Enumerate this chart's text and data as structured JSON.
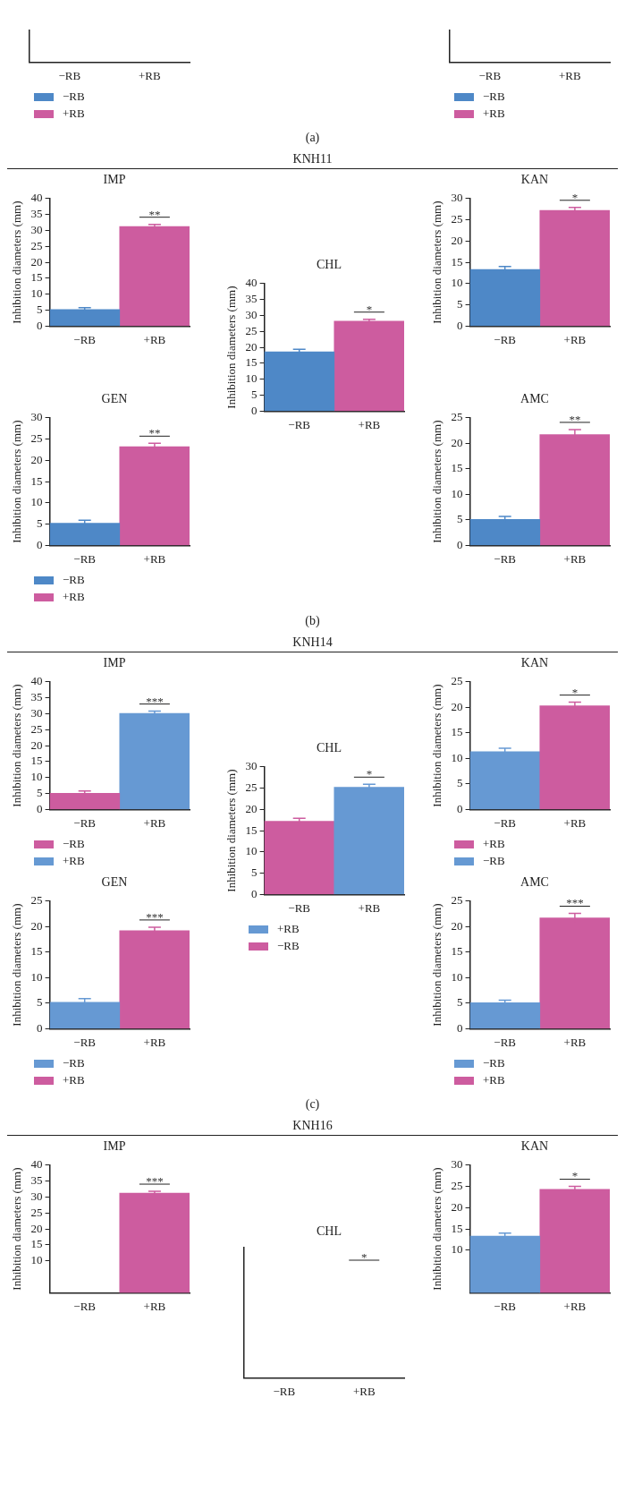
{
  "chart_data": [
    {
      "type": "other",
      "categories": [
        "−RB",
        "+RB"
      ],
      "series": [
        {
          "name": "−RB",
          "color": "#4e88c7",
          "values": [
            null,
            null
          ]
        },
        {
          "name": "+RB",
          "color": "#cd5c9f",
          "values": [
            null,
            null
          ]
        }
      ],
      "legend": "bottom"
    },
    {
      "type": "other",
      "categories": [
        "−RB",
        "+RB"
      ],
      "series": [
        {
          "name": "−RB",
          "color": "#4e88c7",
          "values": [
            null,
            null
          ]
        },
        {
          "name": "+RB",
          "color": "#cd5c9f",
          "values": [
            null,
            null
          ]
        }
      ],
      "legend": "bottom"
    },
    {
      "type": "other",
      "annotations": [
        "(a)"
      ]
    },
    {
      "type": "other",
      "title": "KNH11"
    },
    {
      "type": "bar",
      "title": "IMP",
      "ylabel": "Inhibition diameters (mm)",
      "categories": [
        "−RB",
        "+RB"
      ],
      "series": [
        {
          "color": "#4e88c7",
          "values": [
            5.2,
            null
          ],
          "errors": [
            0.6,
            null
          ]
        },
        {
          "color": "#cd5c9f",
          "values": [
            null,
            31.2
          ],
          "errors": [
            null,
            0.7
          ]
        }
      ],
      "ylim": [
        0,
        40
      ],
      "yticks": [
        0,
        5,
        10,
        15,
        20,
        25,
        30,
        35,
        40
      ],
      "grid": false,
      "annotations": [
        "**"
      ]
    },
    {
      "type": "bar",
      "title": "CHL",
      "ylabel": "Inhibition diameters (mm)",
      "categories": [
        "−RB",
        "+RB"
      ],
      "series": [
        {
          "color": "#4e88c7",
          "values": [
            18.6,
            null
          ],
          "errors": [
            0.8,
            null
          ]
        },
        {
          "color": "#cd5c9f",
          "values": [
            null,
            28.2
          ],
          "errors": [
            null,
            0.6
          ]
        }
      ],
      "ylim": [
        0,
        40
      ],
      "yticks": [
        0,
        5,
        10,
        15,
        20,
        25,
        30,
        35,
        40
      ],
      "grid": false,
      "annotations": [
        "*"
      ]
    },
    {
      "type": "bar",
      "title": "KAN",
      "ylabel": "Inhibition diameters (mm)",
      "categories": [
        "−RB",
        "+RB"
      ],
      "series": [
        {
          "color": "#4e88c7",
          "values": [
            13.3,
            null
          ],
          "errors": [
            0.7,
            null
          ]
        },
        {
          "color": "#cd5c9f",
          "values": [
            null,
            27.2
          ],
          "errors": [
            null,
            0.7
          ]
        }
      ],
      "ylim": [
        0,
        30
      ],
      "yticks": [
        0,
        5,
        10,
        15,
        20,
        25,
        30
      ],
      "grid": false,
      "annotations": [
        "*"
      ]
    },
    {
      "type": "bar",
      "title": "GEN",
      "ylabel": "Inhibition diameters (mm)",
      "categories": [
        "−RB",
        "+RB"
      ],
      "series": [
        {
          "name": "−RB",
          "color": "#4e88c7",
          "values": [
            5.2,
            null
          ],
          "errors": [
            0.7,
            null
          ]
        },
        {
          "name": "+RB",
          "color": "#cd5c9f",
          "values": [
            null,
            23.2
          ],
          "errors": [
            null,
            0.8
          ]
        }
      ],
      "ylim": [
        0,
        30
      ],
      "yticks": [
        0,
        5,
        10,
        15,
        20,
        25,
        30
      ],
      "grid": false,
      "legend": "bottom",
      "annotations": [
        "**"
      ]
    },
    {
      "type": "bar",
      "title": "AMC",
      "ylabel": "Inhibition diameters (mm)",
      "categories": [
        "−RB",
        "+RB"
      ],
      "series": [
        {
          "color": "#4e88c7",
          "values": [
            5.1,
            null
          ],
          "errors": [
            0.6,
            null
          ]
        },
        {
          "color": "#cd5c9f",
          "values": [
            null,
            21.7
          ],
          "errors": [
            null,
            1
          ]
        }
      ],
      "ylim": [
        0,
        25
      ],
      "yticks": [
        0,
        5,
        10,
        15,
        20,
        25
      ],
      "grid": false,
      "annotations": [
        "**"
      ]
    },
    {
      "type": "other",
      "annotations": [
        "(b)"
      ]
    },
    {
      "type": "other",
      "title": "KNH14"
    },
    {
      "type": "bar",
      "title": "IMP",
      "ylabel": "Inhibition diameters (mm)",
      "categories": [
        "−RB",
        "+RB"
      ],
      "series": [
        {
          "name": "−RB",
          "color": "#cd5c9f",
          "values": [
            5.1,
            null
          ],
          "errors": [
            0.7,
            null
          ]
        },
        {
          "name": "+RB",
          "color": "#6699d3",
          "values": [
            null,
            30.1
          ],
          "errors": [
            null,
            0.7
          ]
        }
      ],
      "ylim": [
        0,
        40
      ],
      "yticks": [
        0,
        5,
        10,
        15,
        20,
        25,
        30,
        35,
        40
      ],
      "grid": false,
      "legend": "bottom",
      "annotations": [
        "***"
      ]
    },
    {
      "type": "bar",
      "title": "CHL",
      "ylabel": "Inhibition diameters (mm)",
      "categories": [
        "−RB",
        "+RB"
      ],
      "series": [
        {
          "name": "+RB",
          "color": "#6699d3",
          "values": [
            null,
            25.2
          ],
          "errors": [
            null,
            0.7
          ]
        },
        {
          "name": "−RB",
          "color": "#cd5c9f",
          "values": [
            17.2,
            null
          ],
          "errors": [
            0.7,
            null
          ]
        }
      ],
      "ylim": [
        0,
        30
      ],
      "yticks": [
        0,
        5,
        10,
        15,
        20,
        25,
        30
      ],
      "grid": false,
      "legend": "bottom",
      "annotations": [
        "*"
      ]
    },
    {
      "type": "bar",
      "title": "KAN",
      "ylabel": "Inhibition diameters (mm)",
      "categories": [
        "−RB",
        "+RB"
      ],
      "series": [
        {
          "name": "+RB",
          "color": "#cd5c9f",
          "values": [
            null,
            20.3
          ],
          "errors": [
            null,
            0.7
          ]
        },
        {
          "name": "−RB",
          "color": "#6699d3",
          "values": [
            11.3,
            null
          ],
          "errors": [
            0.7,
            null
          ]
        }
      ],
      "ylim": [
        0,
        25
      ],
      "yticks": [
        0,
        5,
        10,
        15,
        20,
        25
      ],
      "grid": false,
      "legend": "bottom",
      "annotations": [
        "*"
      ]
    },
    {
      "type": "bar",
      "title": "GEN",
      "ylabel": "Inhibition diameters (mm)",
      "categories": [
        "−RB",
        "+RB"
      ],
      "series": [
        {
          "name": "−RB",
          "color": "#6699d3",
          "values": [
            5.2,
            null
          ],
          "errors": [
            0.7,
            null
          ]
        },
        {
          "name": "+RB",
          "color": "#cd5c9f",
          "values": [
            null,
            19.2
          ],
          "errors": [
            null,
            0.7
          ]
        }
      ],
      "ylim": [
        0,
        25
      ],
      "yticks": [
        0,
        5,
        10,
        15,
        20,
        25
      ],
      "grid": false,
      "legend": "bottom",
      "annotations": [
        "***"
      ]
    },
    {
      "type": "bar",
      "title": "AMC",
      "ylabel": "Inhibition diameters (mm)",
      "categories": [
        "−RB",
        "+RB"
      ],
      "series": [
        {
          "name": "−RB",
          "color": "#6699d3",
          "values": [
            5.1,
            null
          ],
          "errors": [
            0.5,
            null
          ]
        },
        {
          "name": "+RB",
          "color": "#cd5c9f",
          "values": [
            null,
            21.7
          ],
          "errors": [
            null,
            0.9
          ]
        }
      ],
      "ylim": [
        0,
        25
      ],
      "yticks": [
        0,
        5,
        10,
        15,
        20,
        25
      ],
      "grid": false,
      "legend": "bottom",
      "annotations": [
        "***"
      ]
    },
    {
      "type": "other",
      "annotations": [
        "(c)"
      ]
    },
    {
      "type": "other",
      "title": "KNH16"
    },
    {
      "type": "bar",
      "title": "IMP",
      "ylabel": "Inhibition diameters (mm)",
      "categories": [
        "−RB",
        "+RB"
      ],
      "series": [
        {
          "color": "#6699d3",
          "values": [
            null,
            null
          ]
        },
        {
          "color": "#cd5c9f",
          "values": [
            null,
            31.2
          ],
          "errors": [
            null,
            0.6
          ]
        }
      ],
      "ylim": [
        0,
        40
      ],
      "yticks": [
        10,
        15,
        20,
        25,
        30,
        35,
        40
      ],
      "grid": false,
      "annotations": [
        "***"
      ]
    },
    {
      "type": "other",
      "title": "CHL",
      "categories": [
        "−RB",
        "+RB"
      ],
      "annotations": [
        "*"
      ]
    },
    {
      "type": "bar",
      "title": "KAN",
      "ylabel": "Inhibition diameters (mm)",
      "categories": [
        "−RB",
        "+RB"
      ],
      "series": [
        {
          "color": "#6699d3",
          "values": [
            13.3,
            null
          ],
          "errors": [
            0.7,
            null
          ]
        },
        {
          "color": "#cd5c9f",
          "values": [
            null,
            24.3
          ],
          "errors": [
            null,
            0.7
          ]
        }
      ],
      "ylim": [
        0,
        30
      ],
      "yticks": [
        10,
        15,
        20,
        25,
        30
      ],
      "grid": false,
      "annotations": [
        "*"
      ]
    }
  ]
}
